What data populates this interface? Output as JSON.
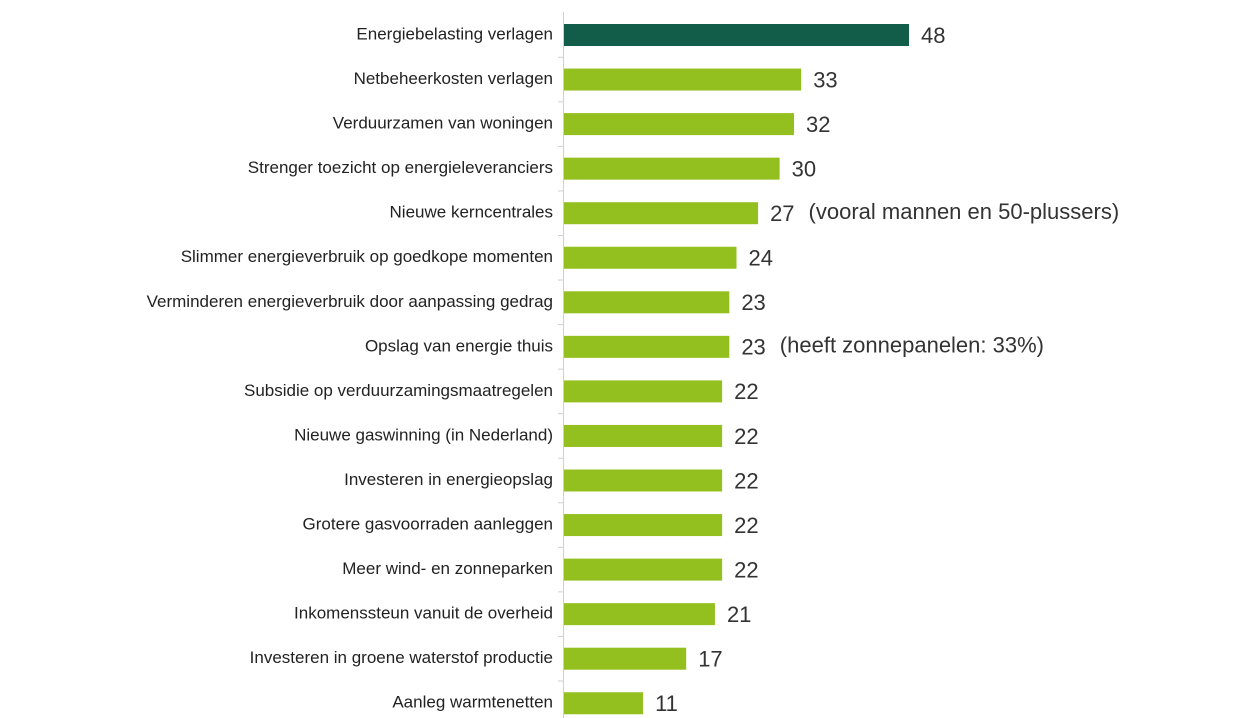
{
  "chart_data": {
    "type": "hbar",
    "categories": [
      "Energiebelasting verlagen",
      "Netbeheerkosten verlagen",
      "Verduurzamen van woningen",
      "Strenger toezicht op energieleveranciers",
      "Nieuwe kerncentrales",
      "Slimmer energieverbruik op goedkope momenten",
      "Verminderen energieverbruik door aanpassing gedrag",
      "Opslag van energie thuis",
      "Subsidie op verduurzamingsmaatregelen",
      "Nieuwe gaswinning (in Nederland)",
      "Investeren in energieopslag",
      "Grotere gasvoorraden aanleggen",
      "Meer wind- en zonneparken",
      "Inkomenssteun vanuit de overheid",
      "Investeren in groene waterstof productie",
      "Aanleg warmtenetten"
    ],
    "values": [
      48,
      33,
      32,
      30,
      27,
      24,
      23,
      23,
      22,
      22,
      22,
      22,
      22,
      21,
      17,
      11
    ],
    "colors": [
      "#125c4a",
      "#93c01f",
      "#93c01f",
      "#93c01f",
      "#93c01f",
      "#93c01f",
      "#93c01f",
      "#93c01f",
      "#93c01f",
      "#93c01f",
      "#93c01f",
      "#93c01f",
      "#93c01f",
      "#93c01f",
      "#93c01f",
      "#93c01f"
    ],
    "annotations": [
      {
        "category": "Nieuwe kerncentrales",
        "text": "(vooral mannen en 50-plussers)"
      },
      {
        "category": "Opslag van energie thuis",
        "text": "(heeft zonnepanelen: 33%)"
      }
    ]
  }
}
